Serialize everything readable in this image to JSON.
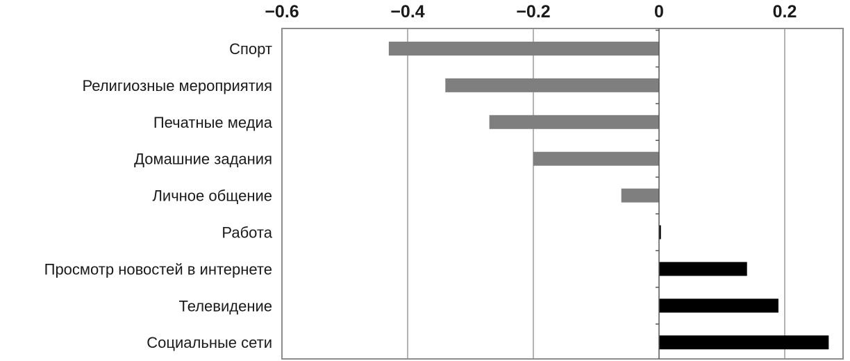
{
  "chart_data": {
    "type": "bar",
    "orientation": "horizontal",
    "categories": [
      "Спорт",
      "Религиозные мероприятия",
      "Печатные медиа",
      "Домашние задания",
      "Личное общение",
      "Работа",
      "Просмотр новостей в интернете",
      "Телевидение",
      "Социальные сети"
    ],
    "values": [
      -0.43,
      -0.34,
      -0.27,
      -0.2,
      -0.06,
      0.003,
      0.14,
      0.19,
      0.27
    ],
    "xlim": [
      -0.6,
      0.28
    ],
    "xticks": [
      -0.6,
      -0.4,
      -0.2,
      0,
      0.2
    ],
    "xtick_labels": [
      "−0.6",
      "−0.4",
      "−0.2",
      "0",
      "0.2"
    ],
    "axis_position": "top",
    "grid": "vertical",
    "colors": {
      "negative": "#7f7f7f",
      "positive": "#000000",
      "grid": "#9a9a9a",
      "frame": "#8c8c8c"
    },
    "title": "",
    "xlabel": "",
    "ylabel": ""
  }
}
